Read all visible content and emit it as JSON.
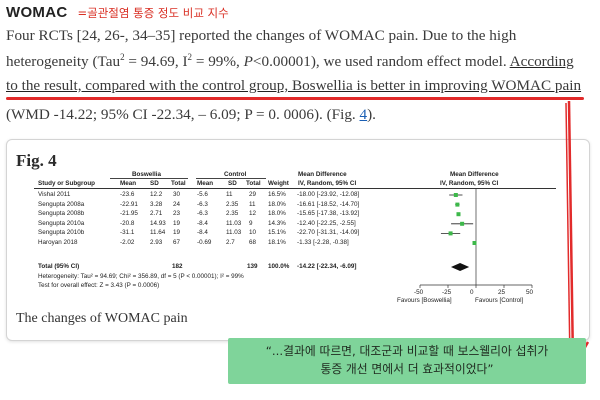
{
  "header": {
    "title": "WOMAC",
    "note": "=골관절염 통증 정도 비교 지수"
  },
  "paragraph": {
    "line1": "Four RCTs [24, 26-, 34–35] reported the changes of WOMAC pain. Due to the high",
    "line2a": "heterogeneity (Tau",
    "sup2": "2",
    "line2b": " = 94.69, I",
    "line2c": " = 99%, ",
    "line2p": "P",
    "line2d": "<0.00001), we used random effect model. ",
    "line2e": "According",
    "line3": "to the result, compared with the control group, Boswellia is better in improving WOMAC pain",
    "line4a": "(WMD -14.22; 95% CI -22.34, – 6.09; P = 0. 0006). (Fig. ",
    "line4link": "4",
    "line4b": ")."
  },
  "figure": {
    "label": "Fig. 4",
    "caption": "The changes of WOMAC pain",
    "group_exp": "Boswellia",
    "group_ctrl": "Control",
    "md_header": "Mean Difference",
    "md_sub": "IV, Random, 95% CI",
    "cols": {
      "study": "Study or Subgroup",
      "mean": "Mean",
      "sd": "SD",
      "total": "Total",
      "weight": "Weight"
    },
    "total_label": "Total (95% CI)",
    "total_exp": "182",
    "total_ctrl": "139",
    "total_weight": "100.0%",
    "total_md": "-14.22 [-22.34, -6.09]",
    "heterogeneity": "Heterogeneity: Tau² = 94.69; Chi² = 356.89, df = 5 (P < 0.00001); I² = 99%",
    "overall": "Test for overall effect: Z = 3.43 (P = 0.0006)",
    "axis_ticks": [
      "-50",
      "-25",
      "0",
      "25",
      "50"
    ],
    "axis_left": "Favours [Boswellia]",
    "axis_right": "Favours [Control]"
  },
  "chart_data": {
    "type": "forest",
    "xlim": [
      -50,
      50
    ],
    "studies": [
      {
        "name": "Vishal 2011",
        "mean_e": "-23.6",
        "sd_e": "12.2",
        "n_e": "30",
        "mean_c": "-5.6",
        "sd_c": "11",
        "n_c": "29",
        "weight": "16.5%",
        "ci_text": "-18.00 [-23.92, -12.08]",
        "md": -18.0,
        "lo": -23.92,
        "hi": -12.08
      },
      {
        "name": "Sengupta 2008a",
        "mean_e": "-22.91",
        "sd_e": "3.28",
        "n_e": "24",
        "mean_c": "-6.3",
        "sd_c": "2.35",
        "n_c": "11",
        "weight": "18.0%",
        "ci_text": "-16.61 [-18.52, -14.70]",
        "md": -16.61,
        "lo": -18.52,
        "hi": -14.7
      },
      {
        "name": "Sengupta 2008b",
        "mean_e": "-21.95",
        "sd_e": "2.71",
        "n_e": "23",
        "mean_c": "-6.3",
        "sd_c": "2.35",
        "n_c": "12",
        "weight": "18.0%",
        "ci_text": "-15.65 [-17.38, -13.92]",
        "md": -15.65,
        "lo": -17.38,
        "hi": -13.92
      },
      {
        "name": "Sengupta 2010a",
        "mean_e": "-20.8",
        "sd_e": "14.93",
        "n_e": "19",
        "mean_c": "-8.4",
        "sd_c": "11.03",
        "n_c": "9",
        "weight": "14.3%",
        "ci_text": "-12.40 [-22.25, -2.55]",
        "md": -12.4,
        "lo": -22.25,
        "hi": -2.55
      },
      {
        "name": "Sengupta 2010b",
        "mean_e": "-31.1",
        "sd_e": "11.64",
        "n_e": "19",
        "mean_c": "-8.4",
        "sd_c": "11.03",
        "n_c": "10",
        "weight": "15.1%",
        "ci_text": "-22.70 [-31.31, -14.09]",
        "md": -22.7,
        "lo": -31.31,
        "hi": -14.09
      },
      {
        "name": "Haroyan 2018",
        "mean_e": "-2.02",
        "sd_e": "2.93",
        "n_e": "67",
        "mean_c": "-0.69",
        "sd_c": "2.7",
        "n_c": "68",
        "weight": "18.1%",
        "ci_text": "-1.33 [-2.28, -0.38]",
        "md": -1.33,
        "lo": -2.28,
        "hi": -0.38
      }
    ],
    "pooled": {
      "md": -14.22,
      "lo": -22.34,
      "hi": -6.09
    }
  },
  "callout": {
    "line1": "“...결과에 따르면, 대조군과 비교할 때 보스웰리아 섭취가",
    "line2": "통증 개선 면에서 더 효과적이었다”"
  },
  "colors": {
    "annotation_red": "#e22b2b",
    "callout_green": "#7fd49a",
    "marker_green": "#3db84a"
  }
}
